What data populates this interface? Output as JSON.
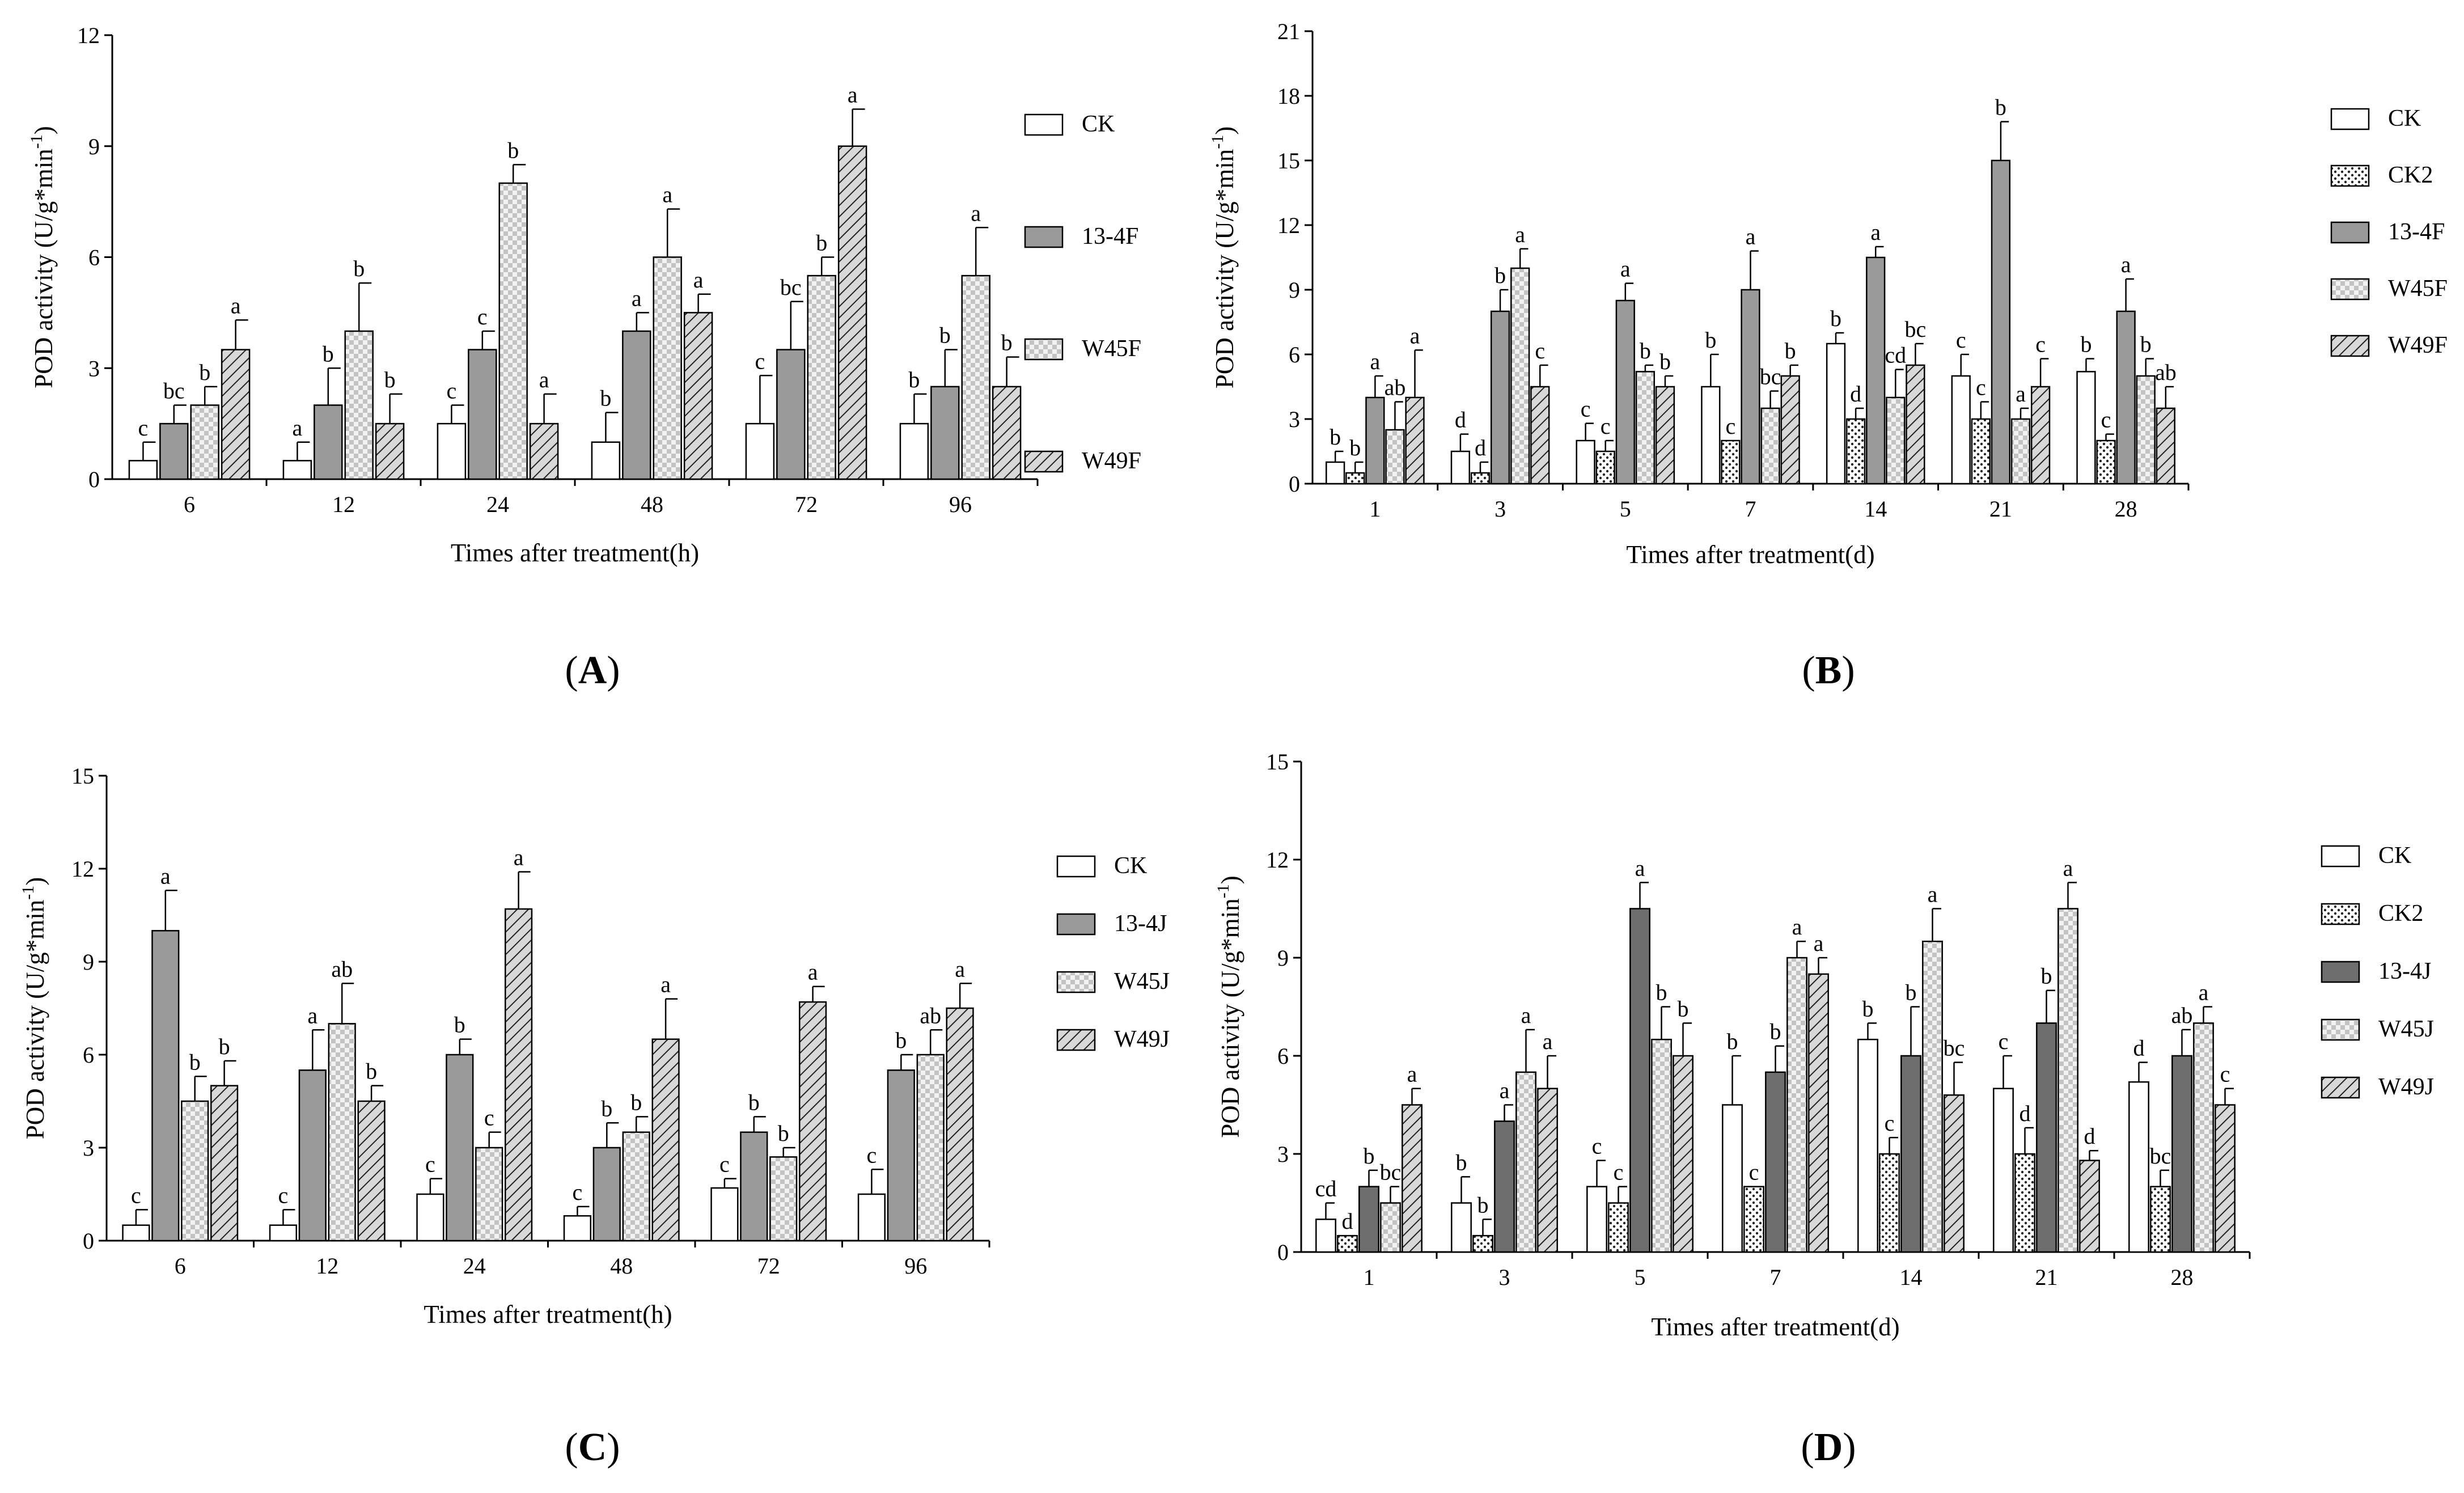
{
  "colors": {
    "CK": "#ffffff",
    "CK2": "dots",
    "treat1": "#9a9a9a",
    "treat1_dark": "#6e6e6e",
    "treat2": "checker",
    "treat3": "hatch"
  },
  "chart_data": [
    {
      "panel": "A",
      "type": "bar",
      "title": "",
      "ylabel": "POD activity (U/g*min-1)",
      "xlabel": "Times after treatment(h)",
      "ylim": [
        0,
        12
      ],
      "yticks": [
        "0",
        "3",
        "6",
        "9",
        "12"
      ],
      "categories": [
        "6",
        "12",
        "24",
        "48",
        "72",
        "96"
      ],
      "legend_position": "right",
      "series": [
        {
          "name": "CK",
          "fill": "CK",
          "values": [
            0.5,
            0.5,
            1.5,
            1.0,
            1.5,
            1.5
          ],
          "errors": [
            0.5,
            0.5,
            0.5,
            0.8,
            1.3,
            0.8
          ],
          "letters": [
            "c",
            "a",
            "c",
            "b",
            "c",
            "b"
          ]
        },
        {
          "name": "13-4F",
          "fill": "treat1",
          "values": [
            1.5,
            2.0,
            3.5,
            4.0,
            3.5,
            2.5
          ],
          "errors": [
            0.5,
            1.0,
            0.5,
            0.5,
            1.3,
            1.0
          ],
          "letters": [
            "bc",
            "b",
            "c",
            "a",
            "bc",
            "b"
          ]
        },
        {
          "name": "W45F",
          "fill": "treat2",
          "values": [
            2.0,
            4.0,
            8.0,
            6.0,
            5.5,
            5.5
          ],
          "errors": [
            0.5,
            1.3,
            0.5,
            1.3,
            0.5,
            1.3
          ],
          "letters": [
            "b",
            "b",
            "b",
            "a",
            "b",
            "a"
          ]
        },
        {
          "name": "W49F",
          "fill": "treat3",
          "values": [
            3.5,
            1.5,
            1.5,
            4.5,
            9.0,
            2.5
          ],
          "errors": [
            0.8,
            0.8,
            0.8,
            0.5,
            1.0,
            0.8
          ],
          "letters": [
            "a",
            "b",
            "a",
            "a",
            "a",
            "b"
          ]
        }
      ]
    },
    {
      "panel": "B",
      "type": "bar",
      "title": "",
      "ylabel": "POD activity (U/g*min-1)",
      "xlabel": "Times after treatment(d)",
      "ylim": [
        0,
        21
      ],
      "yticks": [
        "0",
        "3",
        "6",
        "9",
        "12",
        "15",
        "18",
        "21"
      ],
      "categories": [
        "1",
        "3",
        "5",
        "7",
        "14",
        "21",
        "28"
      ],
      "legend_position": "right",
      "series": [
        {
          "name": "CK",
          "fill": "CK",
          "values": [
            1.0,
            1.5,
            2.0,
            4.5,
            6.5,
            5.0,
            5.2
          ],
          "errors": [
            0.5,
            0.8,
            0.8,
            1.5,
            0.5,
            1.0,
            0.6
          ],
          "letters": [
            "b",
            "d",
            "c",
            "b",
            "b",
            "c",
            "b"
          ]
        },
        {
          "name": "CK2",
          "fill": "CK2",
          "values": [
            0.5,
            0.5,
            1.5,
            2.0,
            3.0,
            3.0,
            2.0
          ],
          "errors": [
            0.5,
            0.5,
            0.5,
            0.0,
            0.5,
            0.8,
            0.3
          ],
          "letters": [
            "b",
            "d",
            "c",
            "c",
            "d",
            "c",
            "c"
          ]
        },
        {
          "name": "13-4F",
          "fill": "treat1",
          "values": [
            4.0,
            8.0,
            8.5,
            9.0,
            10.5,
            15.0,
            8.0
          ],
          "errors": [
            1.0,
            1.0,
            0.8,
            1.8,
            0.5,
            1.8,
            1.5
          ],
          "letters": [
            "a",
            "b",
            "a",
            "a",
            "a",
            "b",
            "a"
          ]
        },
        {
          "name": "W45F",
          "fill": "treat2",
          "values": [
            2.5,
            10.0,
            5.2,
            3.5,
            4.0,
            3.0,
            5.0
          ],
          "errors": [
            1.3,
            0.9,
            0.3,
            0.8,
            1.3,
            0.5,
            0.8
          ],
          "letters": [
            "ab",
            "a",
            "b",
            "bc",
            "cd",
            "a",
            "b"
          ]
        },
        {
          "name": "W49F",
          "fill": "treat3",
          "values": [
            4.0,
            4.5,
            4.5,
            5.0,
            5.5,
            4.5,
            3.5
          ],
          "errors": [
            2.2,
            1.0,
            0.5,
            0.5,
            1.0,
            1.3,
            1.0
          ],
          "letters": [
            "a",
            "c",
            "b",
            "b",
            "bc",
            "c",
            "ab"
          ]
        }
      ]
    },
    {
      "panel": "C",
      "type": "bar",
      "title": "",
      "ylabel": "POD activity (U/g*min-1)",
      "xlabel": "Times after treatment(h)",
      "ylim": [
        0,
        15
      ],
      "yticks": [
        "0",
        "3",
        "6",
        "9",
        "12",
        "15"
      ],
      "categories": [
        "6",
        "12",
        "24",
        "48",
        "72",
        "96"
      ],
      "legend_position": "right",
      "series": [
        {
          "name": "CK",
          "fill": "CK",
          "values": [
            0.5,
            0.5,
            1.5,
            0.8,
            1.7,
            1.5
          ],
          "errors": [
            0.5,
            0.5,
            0.5,
            0.3,
            0.3,
            0.8
          ],
          "letters": [
            "c",
            "c",
            "c",
            "c",
            "c",
            "c"
          ]
        },
        {
          "name": "13-4J",
          "fill": "treat1",
          "values": [
            10.0,
            5.5,
            6.0,
            3.0,
            3.5,
            5.5
          ],
          "errors": [
            1.3,
            1.3,
            0.5,
            0.8,
            0.5,
            0.5
          ],
          "letters": [
            "a",
            "a",
            "b",
            "b",
            "b",
            "b"
          ]
        },
        {
          "name": "W45J",
          "fill": "treat2",
          "values": [
            4.5,
            7.0,
            3.0,
            3.5,
            2.7,
            6.0
          ],
          "errors": [
            0.8,
            1.3,
            0.5,
            0.5,
            0.3,
            0.8
          ],
          "letters": [
            "b",
            "ab",
            "c",
            "b",
            "b",
            "ab"
          ]
        },
        {
          "name": "W49J",
          "fill": "treat3",
          "values": [
            5.0,
            4.5,
            10.7,
            6.5,
            7.7,
            7.5
          ],
          "errors": [
            0.8,
            0.5,
            1.2,
            1.3,
            0.5,
            0.8
          ],
          "letters": [
            "b",
            "b",
            "a",
            "a",
            "a",
            "a"
          ]
        }
      ]
    },
    {
      "panel": "D",
      "type": "bar",
      "title": "",
      "ylabel": "POD activity (U/g*min-1)",
      "xlabel": "Times after treatment(d)",
      "ylim": [
        0,
        15
      ],
      "yticks": [
        "0",
        "3",
        "6",
        "9",
        "12",
        "15"
      ],
      "categories": [
        "1",
        "3",
        "5",
        "7",
        "14",
        "21",
        "28"
      ],
      "legend_position": "right",
      "series": [
        {
          "name": "CK",
          "fill": "CK",
          "values": [
            1.0,
            1.5,
            2.0,
            4.5,
            6.5,
            5.0,
            5.2
          ],
          "errors": [
            0.5,
            0.8,
            0.8,
            1.5,
            0.5,
            1.0,
            0.6
          ],
          "letters": [
            "cd",
            "b",
            "c",
            "b",
            "b",
            "c",
            "d"
          ]
        },
        {
          "name": "CK2",
          "fill": "CK2",
          "values": [
            0.5,
            0.5,
            1.5,
            2.0,
            3.0,
            3.0,
            2.0
          ],
          "errors": [
            0.0,
            0.5,
            0.5,
            0.0,
            0.5,
            0.8,
            0.5
          ],
          "letters": [
            "d",
            "b",
            "c",
            "c",
            "c",
            "d",
            "bc"
          ]
        },
        {
          "name": "13-4J",
          "fill": "treat1_dark",
          "values": [
            2.0,
            4.0,
            10.5,
            5.5,
            6.0,
            7.0,
            6.0
          ],
          "errors": [
            0.5,
            0.5,
            0.8,
            0.8,
            1.5,
            1.0,
            0.8
          ],
          "letters": [
            "b",
            "a",
            "a",
            "b",
            "b",
            "b",
            "ab"
          ]
        },
        {
          "name": "W45J",
          "fill": "treat2",
          "values": [
            1.5,
            5.5,
            6.5,
            9.0,
            9.5,
            10.5,
            7.0
          ],
          "errors": [
            0.5,
            1.3,
            1.0,
            0.5,
            1.0,
            0.8,
            0.5
          ],
          "letters": [
            "bc",
            "a",
            "b",
            "a",
            "a",
            "a",
            "a"
          ]
        },
        {
          "name": "W49J",
          "fill": "treat3",
          "values": [
            4.5,
            5.0,
            6.0,
            8.5,
            4.8,
            2.8,
            4.5
          ],
          "errors": [
            0.5,
            1.0,
            1.0,
            0.5,
            1.0,
            0.3,
            0.5
          ],
          "letters": [
            "a",
            "a",
            "b",
            "a",
            "bc",
            "d",
            "c"
          ]
        }
      ]
    }
  ]
}
